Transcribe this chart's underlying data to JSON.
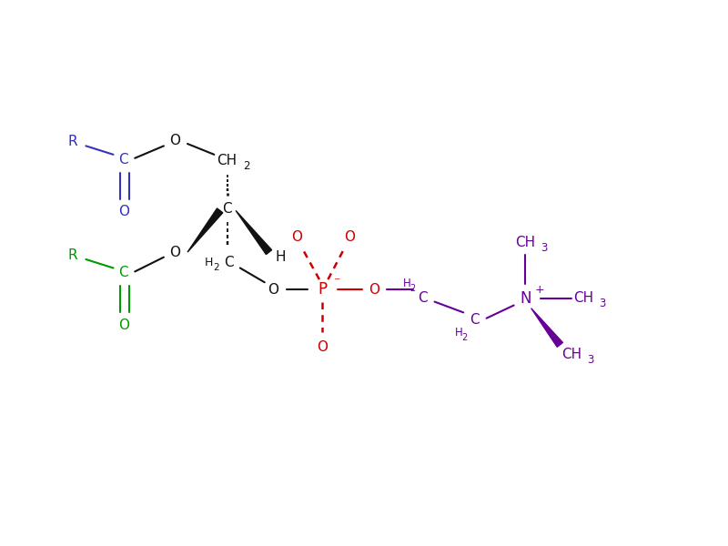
{
  "bg_color": "#ffffff",
  "blue": "#3333bb",
  "green": "#009900",
  "black": "#111111",
  "red": "#cc0000",
  "purple": "#660099",
  "figsize": [
    8.0,
    6.0
  ],
  "dpi": 100,
  "xlim": [
    0,
    10
  ],
  "ylim": [
    0,
    7.5
  ]
}
